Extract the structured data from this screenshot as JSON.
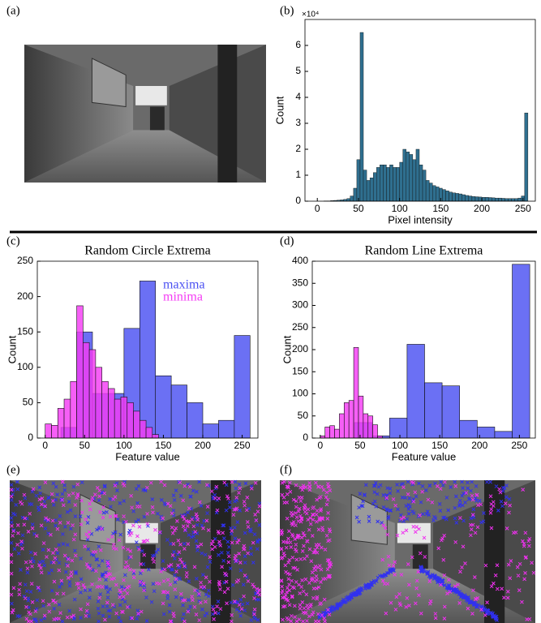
{
  "panel_labels": [
    "(a)",
    "(b)",
    "(c)",
    "(d)",
    "(e)",
    "(f)"
  ],
  "chart_data": [
    {
      "type": "histogram",
      "xlabel": "Pixel intensity",
      "ylabel": "Count",
      "y_exponent_label": "×10⁴",
      "color": "#2f6f8f",
      "bins": [
        0,
        4,
        8,
        12,
        16,
        20,
        24,
        28,
        32,
        36,
        40,
        44,
        48,
        52,
        56,
        60,
        64,
        68,
        72,
        76,
        80,
        84,
        88,
        92,
        96,
        100,
        104,
        108,
        112,
        116,
        120,
        124,
        128,
        132,
        136,
        140,
        144,
        148,
        152,
        156,
        160,
        164,
        168,
        172,
        176,
        180,
        184,
        188,
        192,
        196,
        200,
        204,
        208,
        212,
        216,
        220,
        224,
        228,
        232,
        236,
        240,
        244,
        248,
        252,
        256
      ],
      "values": [
        0,
        0,
        0.01,
        0.01,
        0.02,
        0.03,
        0.04,
        0.05,
        0.07,
        0.1,
        0.2,
        0.5,
        1.6,
        6.5,
        1.2,
        0.8,
        0.9,
        1.1,
        1.3,
        1.4,
        1.4,
        1.3,
        1.4,
        1.3,
        1.3,
        1.5,
        2.0,
        1.9,
        1.8,
        1.6,
        2.0,
        1.4,
        1.2,
        0.8,
        0.7,
        0.6,
        0.55,
        0.5,
        0.45,
        0.4,
        0.35,
        0.32,
        0.3,
        0.28,
        0.25,
        0.22,
        0.2,
        0.18,
        0.17,
        0.16,
        0.15,
        0.15,
        0.14,
        0.13,
        0.12,
        0.12,
        0.11,
        0.1,
        0.1,
        0.1,
        0.1,
        0.12,
        0.2,
        3.4
      ],
      "xlim": [
        -15,
        265
      ],
      "ylim": [
        0,
        7
      ],
      "xticks": [
        0,
        50,
        100,
        150,
        200,
        250
      ],
      "yticks": [
        0,
        1,
        2,
        3,
        4,
        5,
        6
      ]
    },
    {
      "type": "histogram",
      "title": "Random Circle Extrema",
      "xlabel": "Feature value",
      "ylabel": "Count",
      "series": [
        {
          "name": "maxima",
          "color": "#4a50f2",
          "bins": [
            20,
            40,
            60,
            80,
            100,
            120,
            140,
            160,
            180,
            200,
            220,
            240,
            260
          ],
          "values": [
            15,
            150,
            63,
            63,
            155,
            222,
            88,
            75,
            50,
            20,
            25,
            145
          ]
        },
        {
          "name": "minima",
          "color": "#f43cf4",
          "bins": [
            0,
            8,
            16,
            24,
            32,
            40,
            48,
            56,
            64,
            72,
            80,
            88,
            96,
            104,
            112,
            120,
            128,
            136,
            144
          ],
          "values": [
            20,
            18,
            42,
            55,
            80,
            187,
            135,
            125,
            100,
            80,
            70,
            55,
            58,
            50,
            38,
            25,
            15,
            5
          ]
        }
      ],
      "xlim": [
        -10,
        270
      ],
      "ylim": [
        0,
        250
      ],
      "xticks": [
        0,
        50,
        100,
        150,
        200,
        250
      ],
      "yticks": [
        0,
        50,
        100,
        150,
        200,
        250
      ]
    },
    {
      "type": "histogram",
      "title": "Random Line Extrema",
      "xlabel": "Feature value",
      "ylabel": "Count",
      "series": [
        {
          "color": "#4a50f2",
          "bins": [
            43,
            65,
            87,
            109,
            131,
            153,
            175,
            197,
            219,
            241,
            263
          ],
          "values": [
            35,
            5,
            45,
            212,
            125,
            118,
            40,
            25,
            15,
            393
          ]
        },
        {
          "color": "#f43cf4",
          "bins": [
            0,
            6,
            12,
            18,
            24,
            30,
            36,
            42,
            48,
            54,
            60,
            66,
            72,
            78
          ],
          "values": [
            5,
            25,
            28,
            20,
            55,
            80,
            85,
            205,
            95,
            55,
            50,
            30,
            5
          ]
        }
      ],
      "xlim": [
        -10,
        270
      ],
      "ylim": [
        0,
        400
      ],
      "xticks": [
        0,
        50,
        100,
        150,
        200,
        250
      ],
      "yticks": [
        0,
        50,
        100,
        150,
        200,
        250,
        300,
        350,
        400
      ]
    }
  ]
}
